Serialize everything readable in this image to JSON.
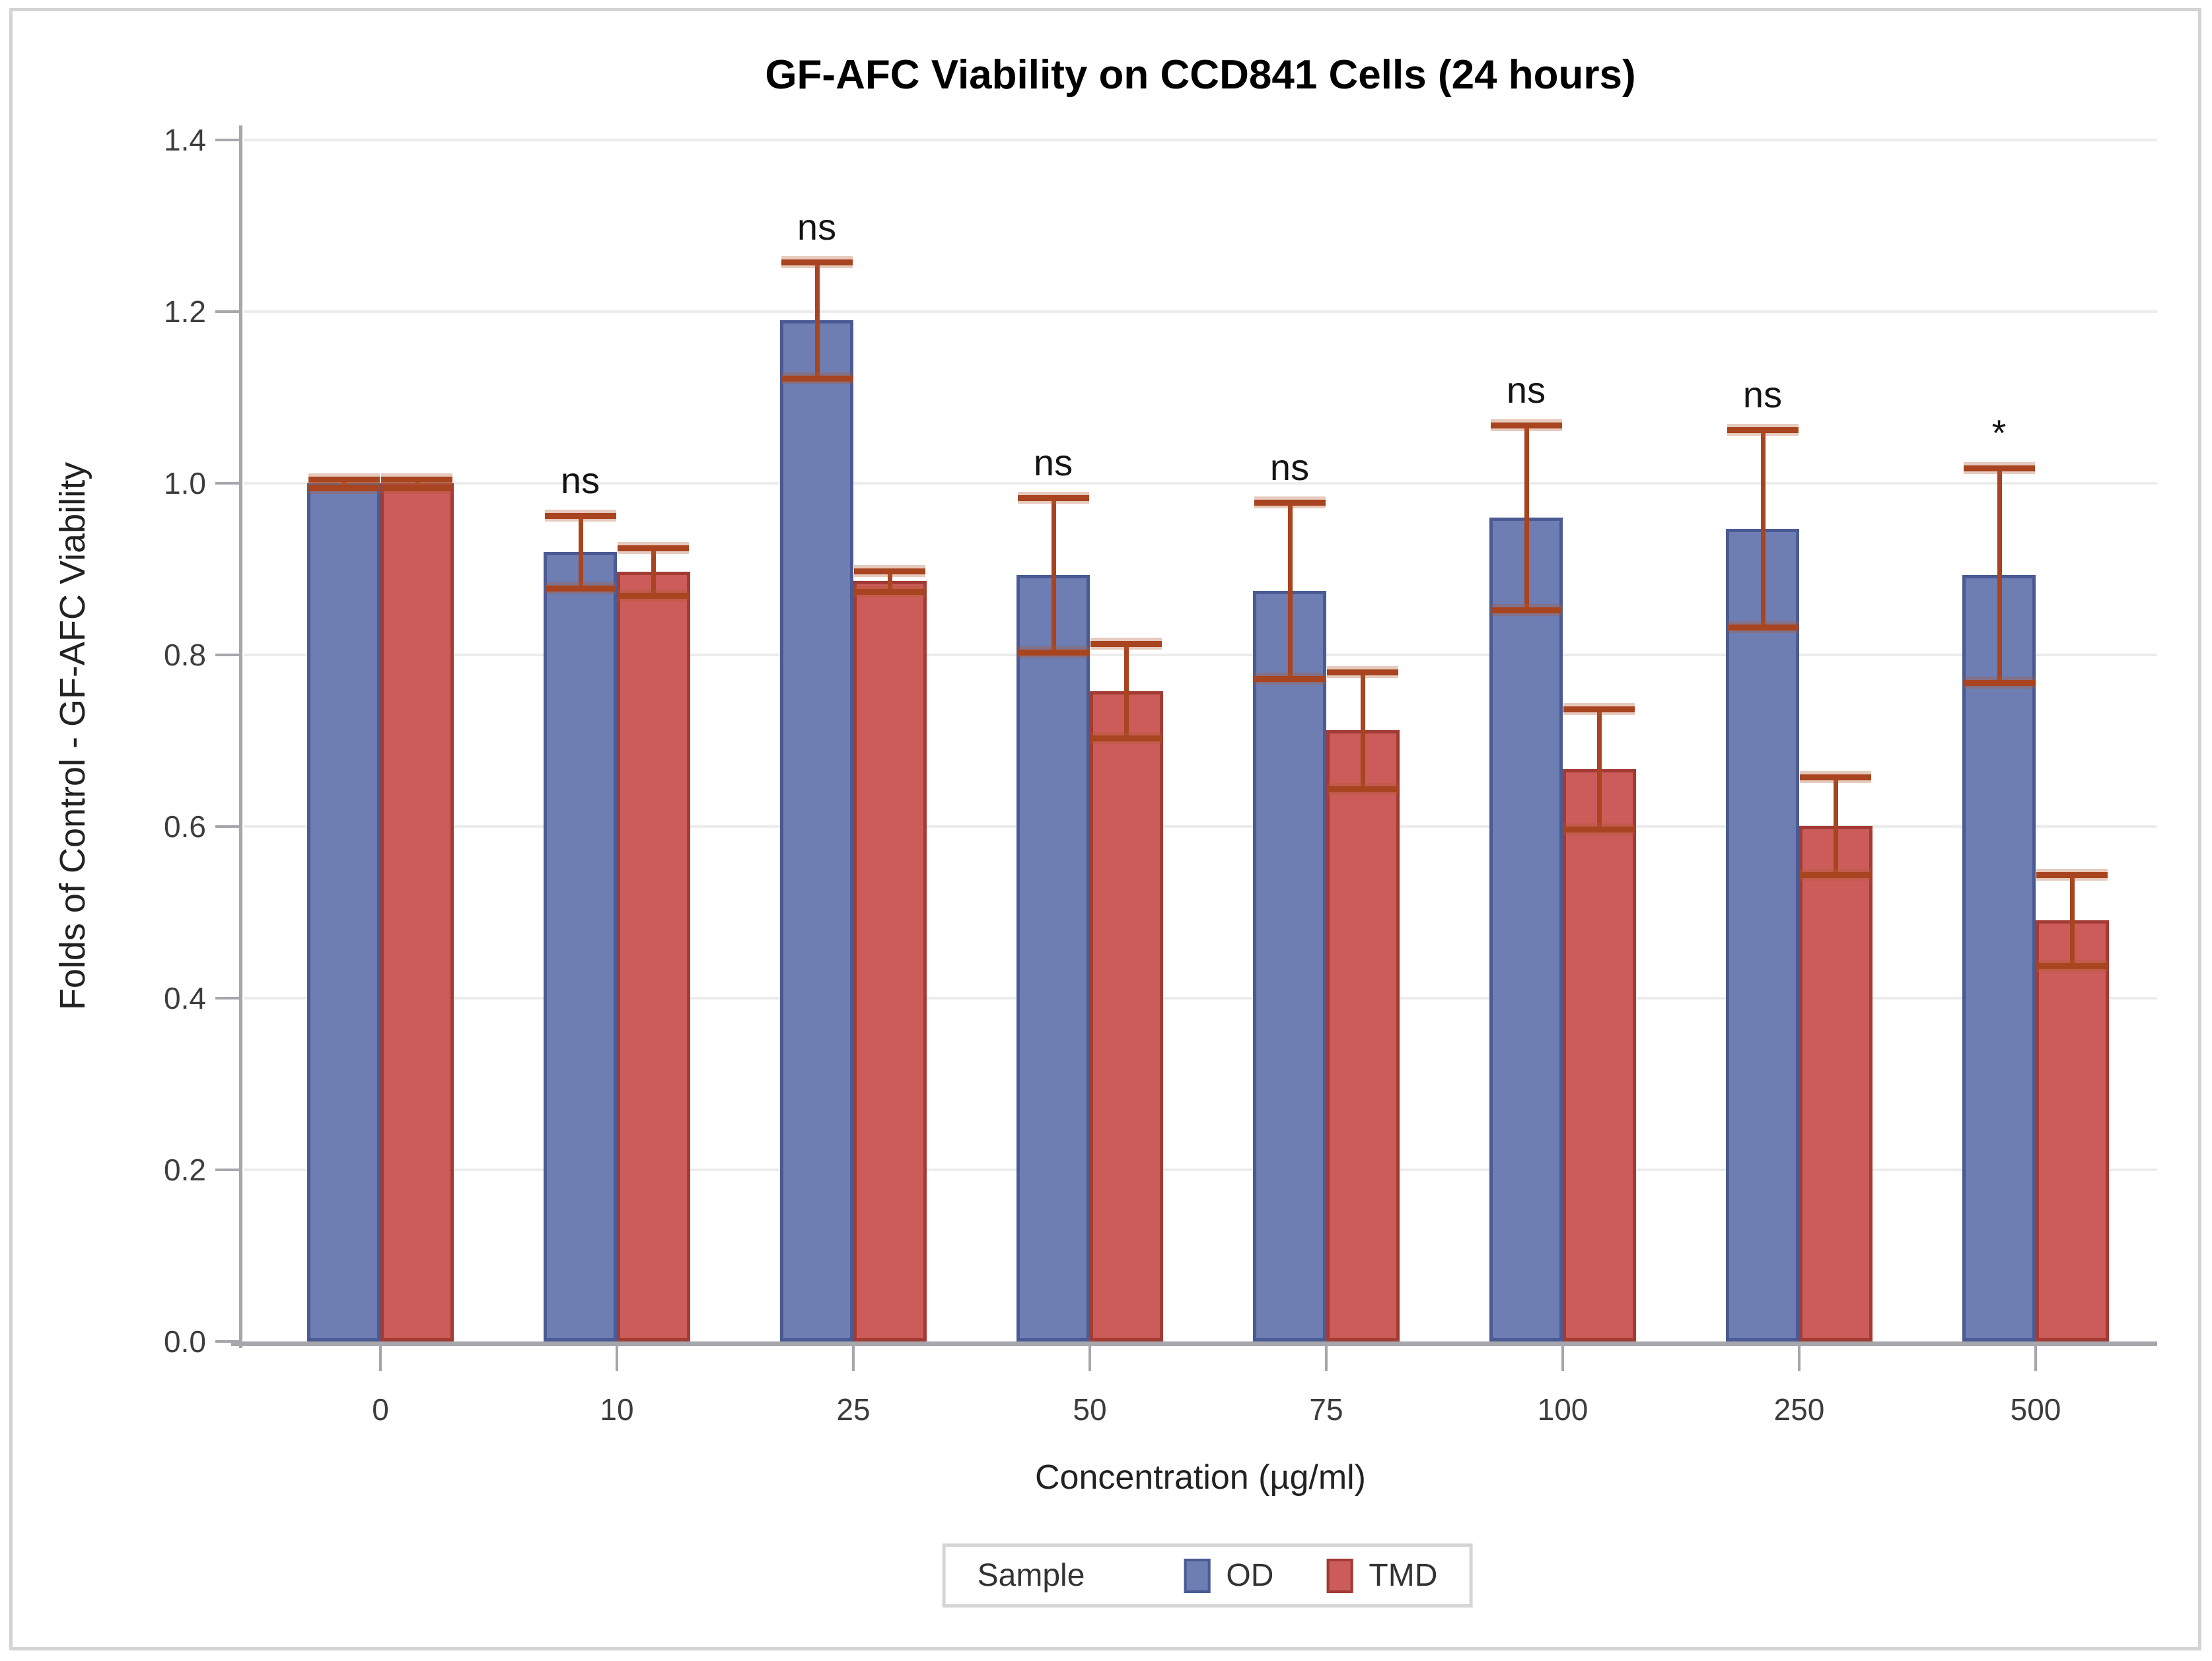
{
  "title": "GF-AFC Viability on CCD841 Cells (24 hours)",
  "y_axis": {
    "label": "Folds of Control - GF-AFC Viability",
    "ticks": [
      "0.0",
      "0.2",
      "0.4",
      "0.6",
      "0.8",
      "1.0",
      "1.2",
      "1.4"
    ]
  },
  "x_axis": {
    "label": "Concentration (µg/ml)",
    "ticks": [
      "0",
      "10",
      "25",
      "50",
      "75",
      "100",
      "250",
      "500"
    ]
  },
  "legend": {
    "title": "Sample",
    "position": "bottom-center",
    "items": [
      {
        "label": "OD",
        "color": "#6e7db2",
        "border": "#4a5a94"
      },
      {
        "label": "TMD",
        "color": "#cc5c5a",
        "border": "#a33b35"
      }
    ]
  },
  "chart_data": {
    "type": "bar",
    "title": "GF-AFC Viability on CCD841 Cells (24 hours)",
    "xlabel": "Concentration (µg/ml)",
    "ylabel": "Folds of Control - GF-AFC Viability",
    "ylim": [
      0,
      1.4
    ],
    "ytick_step": 0.2,
    "grid": true,
    "categories": [
      "0",
      "10",
      "25",
      "50",
      "75",
      "100",
      "250",
      "500"
    ],
    "series": [
      {
        "name": "OD",
        "color": "#6e7db2",
        "border_color": "#4a5a94",
        "values": [
          1.0,
          0.92,
          1.19,
          0.893,
          0.875,
          0.96,
          0.947,
          0.893
        ],
        "errors": [
          0.005,
          0.042,
          0.068,
          0.09,
          0.103,
          0.108,
          0.115,
          0.125
        ]
      },
      {
        "name": "TMD",
        "color": "#cc5c5a",
        "border_color": "#a33b35",
        "values": [
          1.0,
          0.897,
          0.886,
          0.758,
          0.712,
          0.667,
          0.601,
          0.491
        ],
        "errors": [
          0.005,
          0.028,
          0.012,
          0.055,
          0.068,
          0.07,
          0.057,
          0.053
        ]
      }
    ],
    "error_bar_color": "#a8441f",
    "annotations": [
      {
        "category": "10",
        "text": "ns"
      },
      {
        "category": "25",
        "text": "ns"
      },
      {
        "category": "50",
        "text": "ns"
      },
      {
        "category": "75",
        "text": "ns"
      },
      {
        "category": "100",
        "text": "ns"
      },
      {
        "category": "250",
        "text": "ns"
      },
      {
        "category": "500",
        "text": "*"
      }
    ]
  }
}
